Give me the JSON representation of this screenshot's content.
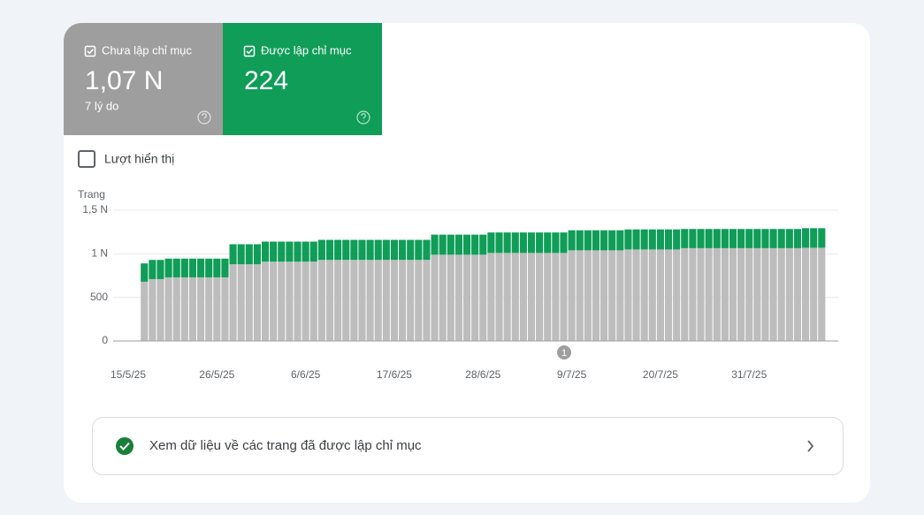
{
  "cards": [
    {
      "label": "Chưa lập chỉ mục",
      "value": "1,07 N",
      "note": "7 lý do",
      "color": "#9e9e9e"
    },
    {
      "label": "Được lập chỉ mục",
      "value": "224",
      "color": "#0f9d58"
    }
  ],
  "toggle": {
    "label": "Lượt hiển thị"
  },
  "chart_data": {
    "type": "stacked_bar",
    "y_label": "Trang",
    "annotation": "1",
    "categories": [
      "15/5/25",
      null,
      null,
      null,
      null,
      null,
      null,
      null,
      null,
      null,
      null,
      "26/5/25",
      null,
      null,
      null,
      null,
      null,
      null,
      null,
      null,
      null,
      null,
      "6/6/25",
      null,
      null,
      null,
      null,
      null,
      null,
      null,
      null,
      null,
      null,
      "17/6/25",
      null,
      null,
      null,
      null,
      null,
      null,
      null,
      null,
      null,
      null,
      "28/6/25",
      null,
      null,
      null,
      null,
      null,
      null,
      null,
      null,
      null,
      null,
      "9/7/25",
      null,
      null,
      null,
      null,
      null,
      null,
      null,
      null,
      null,
      null,
      "20/7/25",
      null,
      null,
      null,
      null,
      null,
      null,
      null,
      null,
      null,
      null,
      "31/7/25",
      null,
      null,
      null,
      null,
      null,
      null,
      null,
      null,
      null
    ],
    "series": [
      {
        "name": "Chưa lập chỉ mục",
        "color": "#bdbdbd",
        "values": [
          null,
          null,
          680,
          710,
          710,
          730,
          730,
          730,
          730,
          730,
          730,
          730,
          730,
          880,
          880,
          880,
          880,
          910,
          910,
          910,
          910,
          910,
          910,
          910,
          930,
          930,
          930,
          930,
          930,
          930,
          930,
          930,
          930,
          930,
          930,
          930,
          930,
          930,
          990,
          990,
          990,
          990,
          990,
          990,
          990,
          1010,
          1010,
          1010,
          1010,
          1010,
          1010,
          1010,
          1010,
          1010,
          1010,
          1040,
          1040,
          1040,
          1040,
          1040,
          1040,
          1040,
          1050,
          1050,
          1050,
          1050,
          1050,
          1050,
          1050,
          1065,
          1065,
          1065,
          1065,
          1065,
          1065,
          1065,
          1065,
          1065,
          1065,
          1065,
          1065,
          1065,
          1065,
          1065,
          1070,
          1070,
          1070
        ]
      },
      {
        "name": "Được lập chỉ mục",
        "color": "#0f9d58",
        "values": [
          null,
          null,
          210,
          220,
          220,
          215,
          215,
          215,
          215,
          215,
          215,
          215,
          215,
          230,
          230,
          230,
          230,
          230,
          230,
          230,
          230,
          230,
          230,
          230,
          230,
          230,
          230,
          230,
          230,
          230,
          230,
          230,
          230,
          230,
          230,
          230,
          230,
          230,
          230,
          230,
          230,
          230,
          230,
          230,
          230,
          235,
          235,
          235,
          235,
          235,
          235,
          235,
          235,
          235,
          235,
          230,
          230,
          230,
          230,
          230,
          230,
          230,
          230,
          230,
          230,
          230,
          230,
          230,
          230,
          220,
          220,
          220,
          220,
          220,
          220,
          220,
          220,
          220,
          220,
          220,
          220,
          220,
          220,
          220,
          224,
          224,
          224
        ]
      }
    ],
    "ylim": [
      0,
      1500
    ],
    "yticks": [
      0,
      500,
      {
        "value": 1000,
        "label": "1 N"
      },
      {
        "value": 1500,
        "label": "1,5 N"
      }
    ],
    "grid": true
  },
  "link": {
    "label": "Xem dữ liệu về các trang đã được lập chỉ mục"
  }
}
